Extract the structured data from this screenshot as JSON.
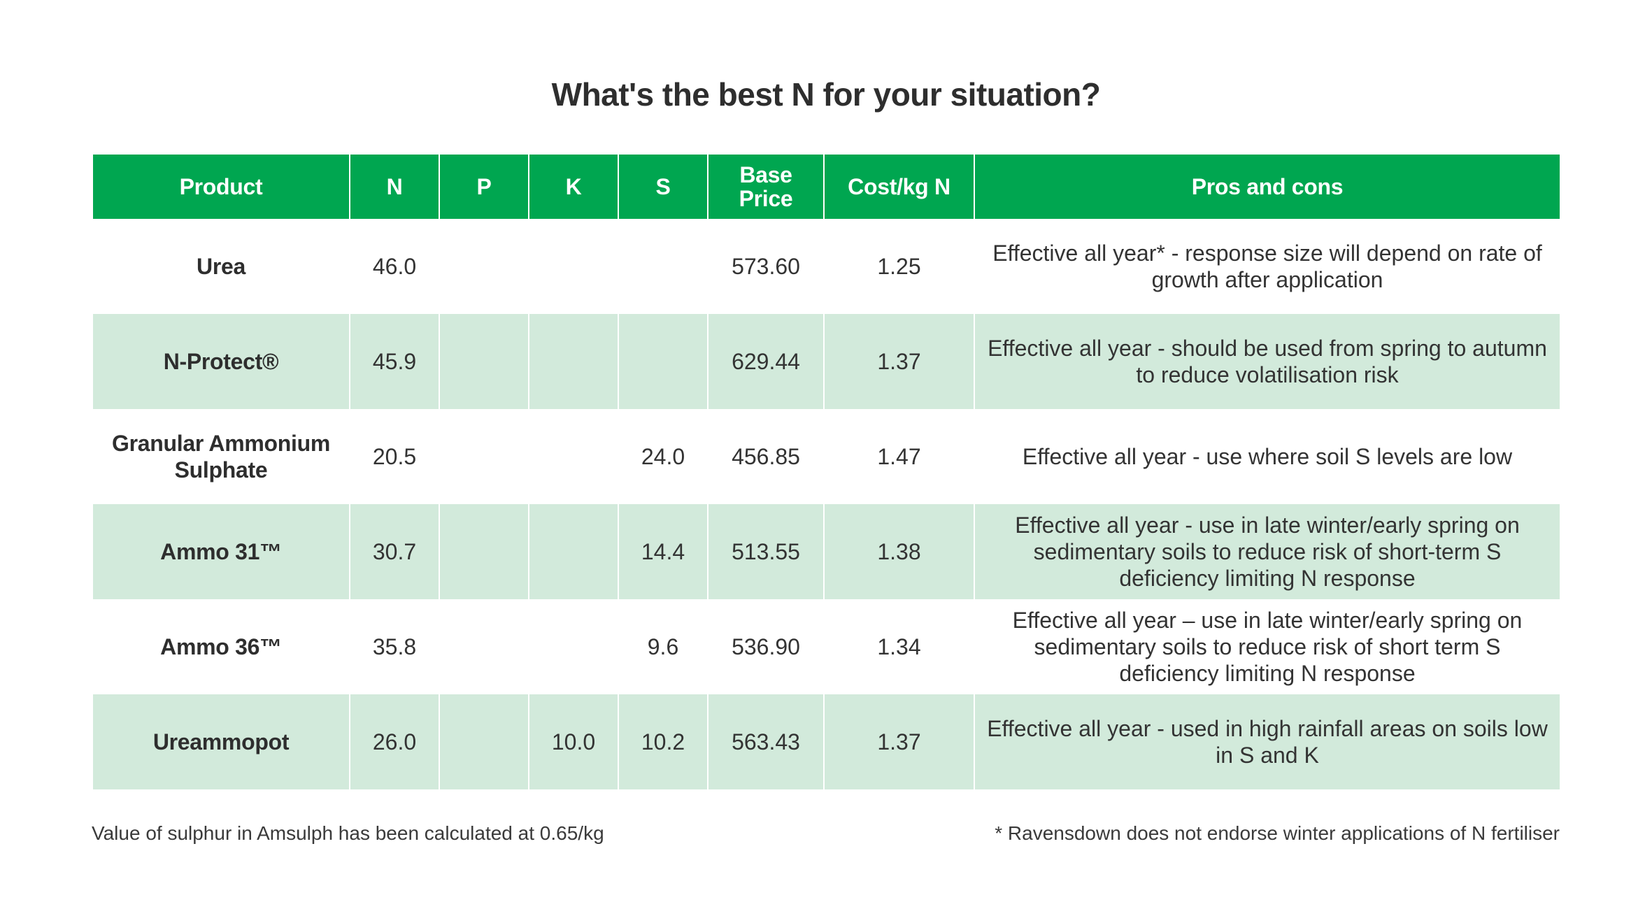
{
  "title": "What's the best N for your situation?",
  "colors": {
    "header_green": "#00a650",
    "row_alt_green": "#d2eadb",
    "text_dark": "#2e2e2e"
  },
  "table": {
    "headers": {
      "product": "Product",
      "n": "N",
      "p": "P",
      "k": "K",
      "s": "S",
      "base_price": "Base Price",
      "cost_per_kg_n": "Cost/kg N",
      "pros_cons": "Pros and cons"
    },
    "rows": [
      {
        "product": "Urea",
        "n": "46.0",
        "p": "",
        "k": "",
        "s": "",
        "base_price": "573.60",
        "cost_per_kg_n": "1.25",
        "pros_cons": "Effective all year* - response size will depend on rate of growth after application"
      },
      {
        "product": "N-Protect®",
        "n": "45.9",
        "p": "",
        "k": "",
        "s": "",
        "base_price": "629.44",
        "cost_per_kg_n": "1.37",
        "pros_cons": "Effective all year - should be used from spring to autumn to reduce volatilisation risk"
      },
      {
        "product": "Granular Ammonium Sulphate",
        "n": "20.5",
        "p": "",
        "k": "",
        "s": "24.0",
        "base_price": "456.85",
        "cost_per_kg_n": "1.47",
        "pros_cons": "Effective all year - use where soil S levels are low"
      },
      {
        "product": "Ammo 31™",
        "n": "30.7",
        "p": "",
        "k": "",
        "s": "14.4",
        "base_price": "513.55",
        "cost_per_kg_n": "1.38",
        "pros_cons": "Effective all year - use in late winter/early spring on sedimentary soils to reduce risk of short-term S deficiency limiting N response"
      },
      {
        "product": "Ammo 36™",
        "n": "35.8",
        "p": "",
        "k": "",
        "s": "9.6",
        "base_price": "536.90",
        "cost_per_kg_n": "1.34",
        "pros_cons": "Effective all year – use in late winter/early spring on sedimentary soils to reduce risk of short term S deficiency limiting N response"
      },
      {
        "product": "Ureammopot",
        "n": "26.0",
        "p": "",
        "k": "10.0",
        "s": "10.2",
        "base_price": "563.43",
        "cost_per_kg_n": "1.37",
        "pros_cons": "Effective all year - used in high rainfall areas on soils low in S and K"
      }
    ]
  },
  "footnotes": {
    "left": "Value of sulphur in Amsulph has been calculated at 0.65/kg",
    "right": "* Ravensdown does not endorse winter applications of N fertiliser"
  }
}
